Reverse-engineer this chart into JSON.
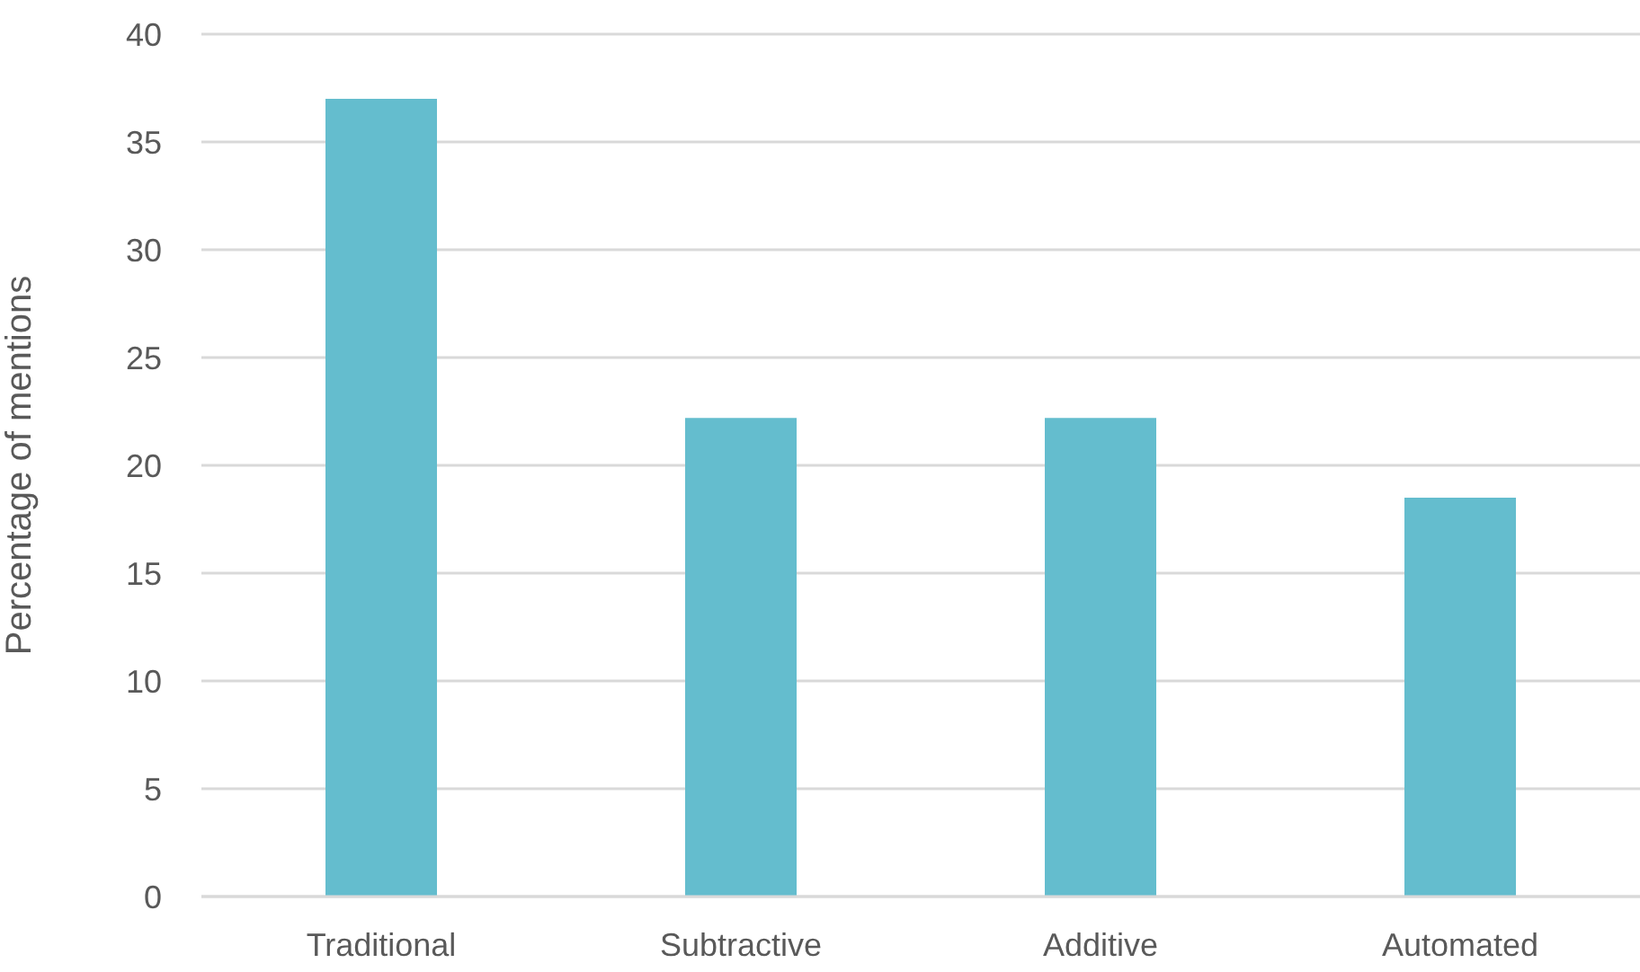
{
  "chart_data": {
    "type": "bar",
    "ylabel": "Percentage of mentions",
    "categories": [
      "Traditional",
      "Subtractive",
      "Additive",
      "Automated"
    ],
    "values": [
      37.0,
      22.2,
      22.2,
      18.5
    ],
    "color": "#64bdce",
    "ylim": [
      0,
      40
    ],
    "yticks": [
      0,
      5,
      10,
      15,
      20,
      25,
      30,
      35,
      40
    ],
    "grid": "y"
  }
}
